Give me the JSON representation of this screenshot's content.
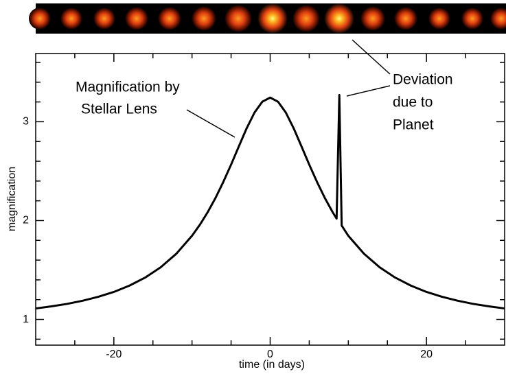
{
  "chart_data": {
    "type": "line",
    "xlabel": "time (in days)",
    "ylabel": "magnification",
    "annotations": [
      {
        "lines": [
          "Magnification by",
          "Stellar Lens"
        ]
      },
      {
        "lines": [
          "Deviation",
          "due to",
          "Planet"
        ]
      }
    ],
    "color": "#000000",
    "x": [
      -30,
      -28,
      -26,
      -24,
      -22,
      -20,
      -18,
      -16,
      -14,
      -12,
      -10,
      -9,
      -8,
      -7,
      -6,
      -5,
      -4,
      -3,
      -2,
      -1,
      0,
      1,
      2,
      3,
      4,
      5,
      6,
      7,
      8,
      8.5,
      8.85,
      9.15,
      10,
      12,
      14,
      16,
      18,
      20,
      22,
      24,
      26,
      28,
      30
    ],
    "values": [
      1.111,
      1.132,
      1.157,
      1.189,
      1.229,
      1.278,
      1.342,
      1.423,
      1.528,
      1.665,
      1.846,
      1.957,
      2.084,
      2.228,
      2.39,
      2.566,
      2.752,
      2.935,
      3.093,
      3.203,
      3.244,
      3.203,
      3.093,
      2.935,
      2.752,
      2.566,
      2.39,
      2.228,
      2.084,
      2.02,
      3.27,
      1.95,
      1.846,
      1.665,
      1.528,
      1.423,
      1.342,
      1.278,
      1.229,
      1.189,
      1.157,
      1.132,
      1.111
    ],
    "xlim": [
      -30,
      30
    ],
    "xticks": [
      -20,
      0,
      20
    ],
    "xminorticks": [
      -25,
      -15,
      -10,
      -5,
      5,
      10,
      15,
      25
    ],
    "ylim": [
      0.74,
      3.69
    ],
    "yticks": [
      1,
      2,
      3
    ],
    "yminorticks": [
      0.8,
      1.2,
      1.4,
      1.6,
      1.8,
      2.2,
      2.4,
      2.6,
      2.8,
      3.2,
      3.4,
      3.6
    ]
  }
}
